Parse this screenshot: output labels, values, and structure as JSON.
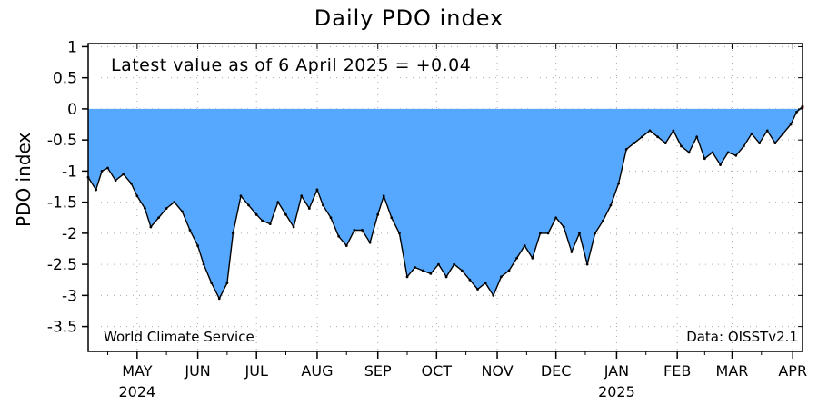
{
  "chart_data": {
    "type": "area",
    "title": "Daily PDO index",
    "annotation": "Latest value as of 6 April 2025 = +0.04",
    "credit": "World Climate Service",
    "source": "Data: OISSTv2.1",
    "ylabel": "PDO index",
    "xlabel": "",
    "ylim": [
      -3.9,
      1.05
    ],
    "yticks": [
      "1",
      "0.5",
      "0",
      "-0.5",
      "-1",
      "-1.5",
      "-2",
      "-2.5",
      "-3",
      "-3.5"
    ],
    "x_start": "2024-04-06",
    "x_end": "2025-04-06",
    "month_ticks": [
      "MAY",
      "JUN",
      "JUL",
      "AUG",
      "SEP",
      "OCT",
      "NOV",
      "DEC",
      "JAN",
      "FEB",
      "MAR",
      "APR"
    ],
    "year_labels": [
      "2024",
      "2025"
    ],
    "grid": true,
    "fill_color": "#55a8fe",
    "line_color": "#000000",
    "positive_color": "#d94a4a",
    "series": [
      {
        "x": [
          "2024-04-06",
          "2024-04-10",
          "2024-04-13",
          "2024-04-16",
          "2024-04-20",
          "2024-04-24",
          "2024-04-28",
          "2024-05-01",
          "2024-05-05",
          "2024-05-08",
          "2024-05-12",
          "2024-05-16",
          "2024-05-20",
          "2024-05-24",
          "2024-05-28",
          "2024-06-01",
          "2024-06-04",
          "2024-06-08",
          "2024-06-12",
          "2024-06-16",
          "2024-06-19",
          "2024-06-23",
          "2024-06-27",
          "2024-07-01",
          "2024-07-04",
          "2024-07-08",
          "2024-07-12",
          "2024-07-16",
          "2024-07-20",
          "2024-07-24",
          "2024-07-28",
          "2024-08-01",
          "2024-08-04",
          "2024-08-08",
          "2024-08-12",
          "2024-08-16",
          "2024-08-20",
          "2024-08-24",
          "2024-08-28",
          "2024-09-01",
          "2024-09-04",
          "2024-09-08",
          "2024-09-12",
          "2024-09-16",
          "2024-09-20",
          "2024-09-24",
          "2024-09-28",
          "2024-10-02",
          "2024-10-06",
          "2024-10-10",
          "2024-10-14",
          "2024-10-18",
          "2024-10-22",
          "2024-10-26",
          "2024-10-30",
          "2024-11-03",
          "2024-11-07",
          "2024-11-11",
          "2024-11-15",
          "2024-11-19",
          "2024-11-23",
          "2024-11-27",
          "2024-12-01",
          "2024-12-05",
          "2024-12-09",
          "2024-12-13",
          "2024-12-17",
          "2024-12-21",
          "2024-12-25",
          "2024-12-29",
          "2025-01-02",
          "2025-01-06",
          "2025-01-10",
          "2025-01-14",
          "2025-01-18",
          "2025-01-22",
          "2025-01-26",
          "2025-01-30",
          "2025-02-03",
          "2025-02-07",
          "2025-02-11",
          "2025-02-15",
          "2025-02-19",
          "2025-02-23",
          "2025-02-27",
          "2025-03-03",
          "2025-03-07",
          "2025-03-11",
          "2025-03-15",
          "2025-03-19",
          "2025-03-23",
          "2025-03-27",
          "2025-03-31",
          "2025-04-03",
          "2025-04-06"
        ],
        "y": [
          -1.1,
          -1.3,
          -1.0,
          -0.95,
          -1.15,
          -1.05,
          -1.2,
          -1.4,
          -1.6,
          -1.9,
          -1.75,
          -1.6,
          -1.5,
          -1.65,
          -1.95,
          -2.2,
          -2.5,
          -2.8,
          -3.05,
          -2.8,
          -2.0,
          -1.4,
          -1.55,
          -1.7,
          -1.8,
          -1.85,
          -1.5,
          -1.7,
          -1.9,
          -1.4,
          -1.6,
          -1.3,
          -1.55,
          -1.75,
          -2.05,
          -2.2,
          -1.95,
          -1.95,
          -2.15,
          -1.7,
          -1.4,
          -1.75,
          -2.0,
          -2.7,
          -2.55,
          -2.6,
          -2.65,
          -2.5,
          -2.7,
          -2.5,
          -2.6,
          -2.75,
          -2.9,
          -2.8,
          -3.0,
          -2.7,
          -2.6,
          -2.4,
          -2.2,
          -2.4,
          -2.0,
          -2.0,
          -1.75,
          -1.9,
          -2.3,
          -2.0,
          -2.5,
          -2.0,
          -1.8,
          -1.55,
          -1.2,
          -0.65,
          -0.55,
          -0.45,
          -0.35,
          -0.45,
          -0.55,
          -0.35,
          -0.6,
          -0.7,
          -0.45,
          -0.8,
          -0.7,
          -0.9,
          -0.7,
          -0.75,
          -0.6,
          -0.4,
          -0.55,
          -0.35,
          -0.55,
          -0.4,
          -0.25,
          -0.05,
          0.04
        ]
      }
    ]
  }
}
